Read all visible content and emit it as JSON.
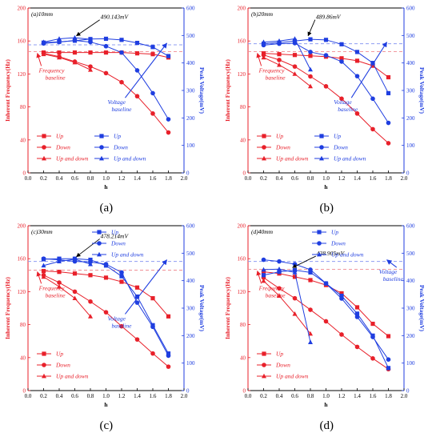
{
  "chart_data": [
    {
      "id": "a",
      "type": "line",
      "caption": "(a)",
      "title": "(a)10mm",
      "xlabel": "h",
      "ylabel_left": "Inherent Frequency(Hz)",
      "ylabel_right": "Peak Voltage(mV)",
      "xlim": [
        0,
        2.0
      ],
      "ylim_left": [
        0,
        200
      ],
      "ylim_right": [
        0,
        600
      ],
      "x_ticks": [
        "0.0",
        "0.2",
        "0.4",
        "0.6",
        "0.8",
        "1.0",
        "1.2",
        "1.4",
        "1.6",
        "1.8",
        "2.0"
      ],
      "y_left_ticks": [
        "0",
        "40",
        "80",
        "120",
        "160",
        "200"
      ],
      "y_right_ticks": [
        "0",
        "100",
        "200",
        "300",
        "400",
        "500",
        "600"
      ],
      "baselines": {
        "frequency": 147,
        "voltage": 466
      },
      "annotations": {
        "peak": {
          "text": "490.143mV",
          "x": 0.6,
          "y_right": 490.1,
          "text_x": 0.93,
          "text_y_right": 560
        },
        "frequency_baseline": {
          "text": [
            "Frequency",
            "baseline"
          ],
          "x": 0.12,
          "y_left": 147,
          "text_x": 0.14,
          "text_y_left": 122
        },
        "voltage_baseline": {
          "text": [
            "Voltage",
            "baseline"
          ],
          "x": 1.78,
          "y_right": 466,
          "text_x": 1.02,
          "text_y_right": 250
        }
      },
      "series": [
        {
          "name": "Up",
          "axis": "left",
          "marker": "square",
          "x": [
            0.2,
            0.4,
            0.6,
            0.8,
            1.0,
            1.2,
            1.4,
            1.6,
            1.8
          ],
          "values": [
            146,
            146,
            146,
            146,
            146,
            146,
            145,
            144,
            140
          ]
        },
        {
          "name": "Down",
          "axis": "left",
          "marker": "circle",
          "x": [
            0.2,
            0.4,
            0.6,
            0.8,
            1.0,
            1.2,
            1.4,
            1.6,
            1.8
          ],
          "values": [
            145,
            141,
            135,
            129,
            121,
            110,
            93,
            72,
            49
          ]
        },
        {
          "name": "Up and down",
          "axis": "left",
          "marker": "triangle",
          "x": [
            0.2,
            0.4,
            0.6,
            0.8
          ],
          "values": [
            144,
            140,
            134,
            125
          ]
        },
        {
          "name": "Up",
          "axis": "right",
          "marker": "square",
          "x": [
            0.2,
            0.4,
            0.6,
            0.8,
            1.0,
            1.2,
            1.4,
            1.6,
            1.8
          ],
          "values": [
            474,
            477,
            481,
            487,
            488,
            484,
            473,
            458,
            425
          ]
        },
        {
          "name": "Down",
          "axis": "right",
          "marker": "circle",
          "x": [
            0.2,
            0.4,
            0.6,
            0.8,
            1.0,
            1.2,
            1.4,
            1.6,
            1.8
          ],
          "values": [
            471,
            476,
            482,
            476,
            461,
            438,
            373,
            290,
            195
          ]
        },
        {
          "name": "Up and down",
          "axis": "right",
          "marker": "triangle",
          "x": [
            0.2,
            0.4,
            0.6,
            0.8
          ],
          "values": [
            476,
            488,
            492,
            486
          ]
        }
      ]
    },
    {
      "id": "b",
      "type": "line",
      "caption": "(b)",
      "title": "(b)20mm",
      "xlabel": "h",
      "ylabel_left": "Inherent Frequency(Hz)",
      "ylabel_right": "Peak Voltage(mV)",
      "xlim": [
        0,
        2.0
      ],
      "ylim_left": [
        0,
        200
      ],
      "ylim_right": [
        0,
        600
      ],
      "x_ticks": [
        "0.0",
        "0.2",
        "0.4",
        "0.6",
        "0.8",
        "1.0",
        "1.2",
        "1.4",
        "1.6",
        "1.8",
        "2.0"
      ],
      "y_left_ticks": [
        "0",
        "40",
        "80",
        "120",
        "160",
        "200"
      ],
      "y_right_ticks": [
        "0",
        "100",
        "200",
        "300",
        "400",
        "500",
        "600"
      ],
      "baselines": {
        "frequency": 147,
        "voltage": 470
      },
      "annotations": {
        "peak": {
          "text": "489.86mV",
          "x": 0.75,
          "y_right": 489.9,
          "text_x": 0.87,
          "text_y_right": 560
        },
        "frequency_baseline": {
          "text": [
            "Frequency",
            "baseline"
          ],
          "x": 0.12,
          "y_left": 147,
          "text_x": 0.14,
          "text_y_left": 122
        },
        "voltage_baseline": {
          "text": [
            "Voltage",
            "baseline"
          ],
          "x": 1.78,
          "y_right": 470,
          "text_x": 1.1,
          "text_y_right": 250
        }
      },
      "series": [
        {
          "name": "Up",
          "axis": "left",
          "marker": "square",
          "x": [
            0.2,
            0.4,
            0.6,
            0.8,
            1.0,
            1.2,
            1.4,
            1.6,
            1.8
          ],
          "values": [
            145,
            144,
            143,
            142,
            141,
            139,
            136,
            130,
            116
          ]
        },
        {
          "name": "Down",
          "axis": "left",
          "marker": "circle",
          "x": [
            0.2,
            0.4,
            0.6,
            0.8,
            1.0,
            1.2,
            1.4,
            1.6,
            1.8
          ],
          "values": [
            143,
            137,
            129,
            117,
            105,
            90,
            72,
            53,
            36
          ]
        },
        {
          "name": "Up and down",
          "axis": "left",
          "marker": "triangle",
          "x": [
            0.2,
            0.4,
            0.6,
            0.8
          ],
          "values": [
            140,
            131,
            120,
            105
          ]
        },
        {
          "name": "Up",
          "axis": "right",
          "marker": "square",
          "x": [
            0.2,
            0.4,
            0.6,
            0.8,
            1.0,
            1.2,
            1.4,
            1.6,
            1.8
          ],
          "values": [
            470,
            474,
            480,
            486,
            484,
            468,
            440,
            400,
            290
          ]
        },
        {
          "name": "Down",
          "axis": "right",
          "marker": "circle",
          "x": [
            0.2,
            0.4,
            0.6,
            0.8,
            1.0,
            1.2,
            1.4,
            1.6,
            1.8
          ],
          "values": [
            465,
            470,
            472,
            440,
            428,
            405,
            352,
            270,
            182
          ]
        },
        {
          "name": "Up and down",
          "axis": "right",
          "marker": "triangle",
          "x": [
            0.2,
            0.4,
            0.6,
            0.8
          ],
          "values": [
            476,
            480,
            488,
            376
          ]
        }
      ]
    },
    {
      "id": "c",
      "type": "line",
      "caption": "(c)",
      "title": "(c)30mm",
      "xlabel": "h",
      "ylabel_left": "Inherent Frequency(Hz)",
      "ylabel_right": "Peak Voltage(mV)",
      "xlim": [
        0,
        2.0
      ],
      "ylim_left": [
        0,
        200
      ],
      "ylim_right": [
        0,
        600
      ],
      "x_ticks": [
        "0.0",
        "0.2",
        "0.4",
        "0.6",
        "0.8",
        "1.0",
        "1.2",
        "1.4",
        "1.6",
        "1.8",
        "2.0"
      ],
      "y_left_ticks": [
        "0",
        "40",
        "80",
        "120",
        "160",
        "200"
      ],
      "y_right_ticks": [
        "0",
        "100",
        "200",
        "300",
        "400",
        "500",
        "600"
      ],
      "baselines": {
        "frequency": 146,
        "voltage": 470
      },
      "annotations": {
        "peak": {
          "text": "478.214mV",
          "x": 0.6,
          "y_right": 478.2,
          "text_x": 0.93,
          "text_y_right": 555
        },
        "frequency_baseline": {
          "text": [
            "Frequency",
            "baseline"
          ],
          "x": 0.12,
          "y_left": 146,
          "text_x": 0.14,
          "text_y_left": 122
        },
        "voltage_baseline": {
          "text": [
            "Voltage",
            "baseline"
          ],
          "x": 1.78,
          "y_right": 470,
          "text_x": 1.02,
          "text_y_right": 255
        }
      },
      "series": [
        {
          "name": "Up",
          "axis": "left",
          "marker": "square",
          "x": [
            0.2,
            0.4,
            0.6,
            0.8,
            1.0,
            1.2,
            1.4,
            1.6,
            1.8
          ],
          "values": [
            145,
            144,
            142,
            140,
            137,
            132,
            125,
            112,
            90
          ]
        },
        {
          "name": "Down",
          "axis": "left",
          "marker": "circle",
          "x": [
            0.2,
            0.4,
            0.6,
            0.8,
            1.0,
            1.2,
            1.4,
            1.6,
            1.8
          ],
          "values": [
            140,
            131,
            120,
            108,
            95,
            78,
            62,
            45,
            29
          ]
        },
        {
          "name": "Up and down",
          "axis": "left",
          "marker": "triangle",
          "x": [
            0.2,
            0.4,
            0.6,
            0.8
          ],
          "values": [
            138,
            126,
            112,
            90
          ]
        },
        {
          "name": "Up",
          "axis": "right",
          "marker": "square",
          "x": [
            0.2,
            0.4,
            0.6,
            0.8,
            1.0,
            1.2,
            1.4,
            1.6,
            1.8
          ],
          "values": [
            478,
            480,
            480,
            476,
            455,
            416,
            342,
            238,
            135
          ]
        },
        {
          "name": "Down",
          "axis": "right",
          "marker": "circle",
          "x": [
            0.2,
            0.4,
            0.6,
            0.8,
            1.0,
            1.2,
            1.4,
            1.6,
            1.8
          ],
          "values": [
            480,
            476,
            470,
            468,
            460,
            430,
            320,
            232,
            127
          ]
        },
        {
          "name": "Up and down",
          "axis": "right",
          "marker": "triangle",
          "x": [
            0.2,
            0.4,
            0.6,
            0.8
          ],
          "values": [
            455,
            470,
            478,
            460
          ]
        }
      ]
    },
    {
      "id": "d",
      "type": "line",
      "caption": "(d)",
      "title": "(d)40mm",
      "xlabel": "h",
      "ylabel_left": "Inherent Frequency(Hz)",
      "ylabel_right": "Peak Voltage(mV)",
      "xlim": [
        0,
        2.0
      ],
      "ylim_left": [
        0,
        200
      ],
      "ylim_right": [
        0,
        600
      ],
      "x_ticks": [
        "0.0",
        "0.2",
        "0.4",
        "0.6",
        "0.8",
        "1.0",
        "1.2",
        "1.4",
        "1.6",
        "1.8",
        "2.0"
      ],
      "y_left_ticks": [
        "0",
        "40",
        "80",
        "120",
        "160",
        "200"
      ],
      "y_right_ticks": [
        "0",
        "100",
        "200",
        "300",
        "400",
        "500",
        "600"
      ],
      "baselines": {
        "frequency": 147,
        "voltage": 470
      },
      "annotations": {
        "peak": {
          "text": "438.905mV",
          "x": 0.55,
          "y_right": 438.9,
          "text_x": 0.88,
          "text_y_right": 492
        },
        "frequency_baseline": {
          "text": [
            "Frequency",
            "baseline"
          ],
          "x": 0.12,
          "y_left": 147,
          "text_x": 0.14,
          "text_y_left": 122
        },
        "voltage_baseline": {
          "text": [
            "Voltage",
            "baseline"
          ],
          "x": 1.78,
          "y_right": 470,
          "text_x": 1.68,
          "text_y_right": 425
        }
      },
      "series": [
        {
          "name": "Up",
          "axis": "left",
          "marker": "square",
          "x": [
            0.2,
            0.4,
            0.6,
            0.8,
            1.0,
            1.2,
            1.4,
            1.6,
            1.8
          ],
          "values": [
            144,
            142,
            138,
            134,
            128,
            118,
            101,
            81,
            66
          ]
        },
        {
          "name": "Down",
          "axis": "left",
          "marker": "circle",
          "x": [
            0.2,
            0.4,
            0.6,
            0.8,
            1.0,
            1.2,
            1.4,
            1.6,
            1.8
          ],
          "values": [
            137,
            124,
            112,
            98,
            84,
            68,
            53,
            39,
            26
          ]
        },
        {
          "name": "Up and down",
          "axis": "left",
          "marker": "triangle",
          "x": [
            0.2,
            0.4,
            0.6,
            0.8
          ],
          "values": [
            133,
            115,
            93,
            69
          ]
        },
        {
          "name": "Up",
          "axis": "right",
          "marker": "square",
          "x": [
            0.2,
            0.4,
            0.6,
            0.8,
            1.0,
            1.2,
            1.4,
            1.6,
            1.8
          ],
          "values": [
            420,
            432,
            438,
            430,
            390,
            345,
            280,
            200,
            82
          ]
        },
        {
          "name": "Down",
          "axis": "right",
          "marker": "circle",
          "x": [
            0.2,
            0.4,
            0.6,
            0.8,
            1.0,
            1.2,
            1.4,
            1.6,
            1.8
          ],
          "values": [
            476,
            470,
            460,
            440,
            390,
            335,
            268,
            195,
            113
          ]
        },
        {
          "name": "Up and down",
          "axis": "right",
          "marker": "triangle",
          "x": [
            0.2,
            0.4,
            0.6,
            0.8
          ],
          "values": [
            440,
            442,
            430,
            176
          ]
        }
      ]
    }
  ],
  "legend": {
    "left_labels": [
      "Up",
      "Down",
      "Up and down"
    ],
    "right_labels": [
      "Up",
      "Down",
      "Up and down"
    ]
  },
  "colors": {
    "frequency": "#e8202a",
    "voltage": "#1f3ee0",
    "axis_text_left": "#e8202a",
    "axis_text_right": "#1f3ee0",
    "baseline_frequency": "#f08a90",
    "baseline_voltage": "#8f9cf2"
  }
}
